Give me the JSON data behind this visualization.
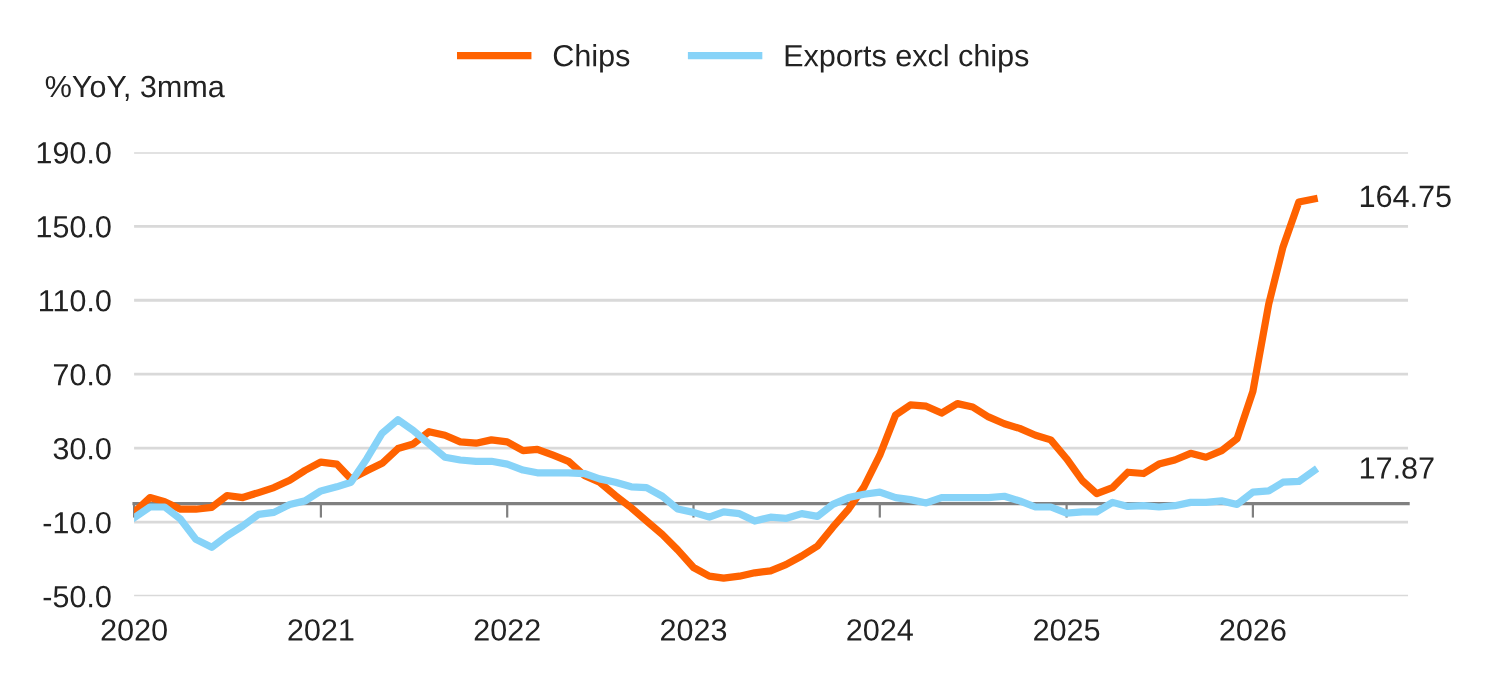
{
  "chart_data": {
    "type": "line",
    "ylabel": "%YoY, 3mma",
    "legend": "top",
    "grid": "y",
    "line_style": "solid",
    "marker": "none",
    "x": [
      "2020-01",
      "2020-02",
      "2020-03",
      "2020-04",
      "2020-05",
      "2020-06",
      "2020-07",
      "2020-08",
      "2020-09",
      "2020-10",
      "2020-11",
      "2020-12",
      "2021-01",
      "2021-02",
      "2021-03",
      "2021-04",
      "2021-05",
      "2021-06",
      "2021-07",
      "2021-08",
      "2021-09",
      "2021-10",
      "2021-11",
      "2021-12",
      "2022-01",
      "2022-02",
      "2022-03",
      "2022-04",
      "2022-05",
      "2022-06",
      "2022-07",
      "2022-08",
      "2022-09",
      "2022-10",
      "2022-11",
      "2022-12",
      "2023-01",
      "2023-02",
      "2023-03",
      "2023-04",
      "2023-05",
      "2023-06",
      "2023-07",
      "2023-08",
      "2023-09",
      "2023-10",
      "2023-11",
      "2023-12",
      "2024-01",
      "2024-02",
      "2024-03",
      "2024-04",
      "2024-05",
      "2024-06",
      "2024-07",
      "2024-08",
      "2024-09",
      "2024-10",
      "2024-11",
      "2024-12",
      "2025-01",
      "2025-02",
      "2025-03",
      "2025-04",
      "2025-05",
      "2025-06",
      "2025-07",
      "2025-08",
      "2025-09",
      "2025-10",
      "2025-11",
      "2025-12",
      "2026-01",
      "2026-02",
      "2026-03",
      "2026-04",
      "2026-05"
    ],
    "series": [
      {
        "name": "Chips",
        "color": "#ff6200",
        "values": [
          -4.7,
          3.3,
          1,
          -3,
          -3,
          -2,
          4.4,
          3.3,
          6,
          8.7,
          12.7,
          18,
          22.5,
          21.4,
          13.4,
          17.8,
          21.8,
          29.8,
          32.3,
          38.9,
          37,
          33.4,
          32.7,
          34.5,
          33.4,
          28.7,
          29.4,
          26.2,
          22.9,
          15.3,
          11.6,
          4.4,
          -2.2,
          -9.4,
          -16.7,
          -25,
          -34.5,
          -39.2,
          -40.3,
          -39.2,
          -37.4,
          -36.3,
          -33,
          -28.3,
          -22.9,
          -12.7,
          -2.9,
          9.1,
          26.2,
          48,
          53.4,
          52.7,
          49,
          54.1,
          52.3,
          46.9,
          43.2,
          40.7,
          37,
          34.5,
          24.3,
          12.4,
          5.4,
          8.7,
          17,
          16.3,
          21.4,
          23.6,
          27.2,
          25.1,
          28.7,
          35.2,
          60.7,
          107.9,
          138.8,
          163.1,
          164.75
        ]
      },
      {
        "name": "Exports excl chips",
        "color": "#87d3f8",
        "values": [
          -7.6,
          -1.8,
          -1.8,
          -8.4,
          -19.3,
          -23.6,
          -17.4,
          -12,
          -5.8,
          -4.7,
          -0.4,
          1.5,
          6.9,
          9.1,
          11.6,
          24.3,
          38.1,
          45.4,
          39.6,
          32.3,
          25.1,
          23.6,
          22.9,
          22.9,
          21.4,
          18.2,
          16.7,
          16.7,
          16.7,
          16.3,
          13.4,
          11.6,
          9.1,
          8.7,
          4,
          -2.9,
          -4.7,
          -7.3,
          -4.4,
          -5.4,
          -9.4,
          -7.3,
          -8,
          -5.4,
          -6.9,
          -0.4,
          3.3,
          5.1,
          6.2,
          3.3,
          2.2,
          0.4,
          3.3,
          3.3,
          3.3,
          3.3,
          4,
          1.5,
          -1.8,
          -1.8,
          -5.1,
          -4.4,
          -4.4,
          0.7,
          -1.5,
          -1.1,
          -1.8,
          -1.1,
          0.7,
          0.7,
          1.5,
          -0.4,
          6.2,
          6.9,
          11.6,
          12,
          17.87
        ]
      }
    ],
    "annotations": [
      {
        "text": "164.75",
        "x": "2026-05",
        "y": 164.75
      },
      {
        "text": "17.87",
        "x": "2026-05",
        "y": 17.87
      }
    ],
    "ref_lines": [
      {
        "axis": "y",
        "value": 0,
        "color": "#808080"
      }
    ],
    "xlim": [
      "2020-01",
      "2026-11"
    ],
    "xticks": [
      {
        "value": "2020-01",
        "label": "2020"
      },
      {
        "value": "2021-01",
        "label": "2021"
      },
      {
        "value": "2022-01",
        "label": "2022"
      },
      {
        "value": "2023-01",
        "label": "2023"
      },
      {
        "value": "2024-01",
        "label": "2024"
      },
      {
        "value": "2025-01",
        "label": "2025"
      },
      {
        "value": "2026-01",
        "label": "2026"
      }
    ],
    "ylim": [
      -50,
      190
    ],
    "yticks": [
      {
        "value": -50,
        "label": "-50.0"
      },
      {
        "value": -10,
        "label": "-10.0"
      },
      {
        "value": 30,
        "label": "30.0"
      },
      {
        "value": 70,
        "label": "70.0"
      },
      {
        "value": 110,
        "label": "110.0"
      },
      {
        "value": 150,
        "label": "150.0"
      },
      {
        "value": 190,
        "label": "190.0"
      }
    ]
  }
}
